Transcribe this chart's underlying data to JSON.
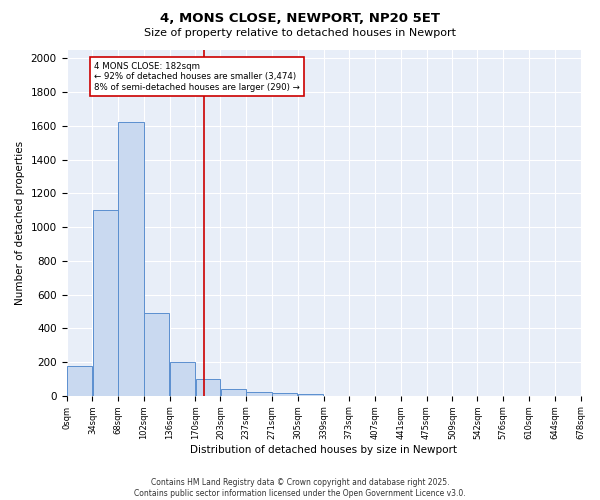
{
  "title": "4, MONS CLOSE, NEWPORT, NP20 5ET",
  "subtitle": "Size of property relative to detached houses in Newport",
  "xlabel": "Distribution of detached houses by size in Newport",
  "ylabel": "Number of detached properties",
  "bar_values": [
    175,
    1100,
    1625,
    490,
    200,
    100,
    40,
    25,
    15,
    10,
    0,
    0,
    0,
    0,
    0,
    0,
    0,
    0,
    0,
    0
  ],
  "bin_labels": [
    "0sqm",
    "34sqm",
    "68sqm",
    "102sqm",
    "136sqm",
    "170sqm",
    "203sqm",
    "237sqm",
    "271sqm",
    "305sqm",
    "339sqm",
    "373sqm",
    "407sqm",
    "441sqm",
    "475sqm",
    "509sqm",
    "542sqm",
    "576sqm",
    "610sqm",
    "644sqm",
    "678sqm"
  ],
  "bin_edges": [
    0,
    34,
    68,
    102,
    136,
    170,
    203,
    237,
    271,
    305,
    339,
    373,
    407,
    441,
    475,
    509,
    542,
    576,
    610,
    644,
    678
  ],
  "bar_color": "#c9d9f0",
  "bar_edge_color": "#5b8fcf",
  "vline_x": 182,
  "vline_color": "#cc0000",
  "annotation_title": "4 MONS CLOSE: 182sqm",
  "annotation_line1": "← 92% of detached houses are smaller (3,474)",
  "annotation_line2": "8% of semi-detached houses are larger (290) →",
  "annotation_box_color": "#cc0000",
  "ylim": [
    0,
    2050
  ],
  "yticks": [
    0,
    200,
    400,
    600,
    800,
    1000,
    1200,
    1400,
    1600,
    1800,
    2000
  ],
  "bg_color": "#e8eef8",
  "footer_line1": "Contains HM Land Registry data © Crown copyright and database right 2025.",
  "footer_line2": "Contains public sector information licensed under the Open Government Licence v3.0."
}
